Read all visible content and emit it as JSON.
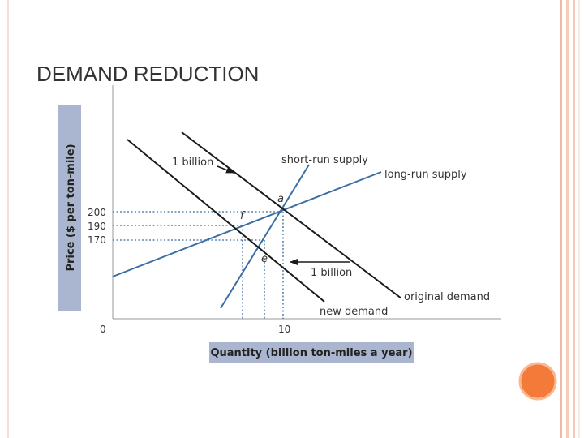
{
  "header": {
    "title": "DEMAND REDUCTION"
  },
  "diagram": {
    "y_axis_label": "Price ($ per ton-mile)",
    "x_axis_label": "Quantity (billion ton-miles a year)",
    "y_tick_labels": [
      "200",
      "190",
      "170"
    ],
    "x_tick_labels": [
      "0",
      "10"
    ],
    "curves": {
      "short_run_supply": "short-run supply",
      "long_run_supply": "long-run supply",
      "original_demand": "original demand",
      "new_demand": "new demand"
    },
    "points": {
      "a": "a",
      "f": "f",
      "e": "e"
    },
    "arrows": {
      "top": "1 billion",
      "bottom": "1 billion"
    }
  }
}
